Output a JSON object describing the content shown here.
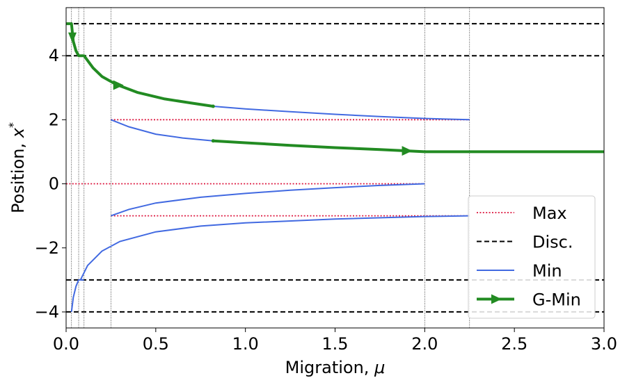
{
  "chart_data": {
    "type": "line",
    "xlabel": "Migration, μ",
    "ylabel": "Position, x*",
    "xlim": [
      0.0,
      3.0
    ],
    "ylim": [
      -4.5,
      5.5
    ],
    "x_ticks": [
      "0.0",
      "0.5",
      "1.0",
      "1.5",
      "2.0",
      "2.5",
      "3.0"
    ],
    "y_ticks": [
      "−4",
      "−2",
      "0",
      "2",
      "4"
    ],
    "grid": false,
    "legend": {
      "placement": "bottom-right",
      "entries": [
        "Max",
        "Disc.",
        "Min",
        "G-Min"
      ]
    },
    "colors": {
      "max": "#dc143c",
      "disc": "#000000",
      "min": "#4169e1",
      "gmin": "#228b22"
    },
    "bifurcation_points": [
      0.03,
      0.07,
      0.1,
      0.25,
      2.0,
      2.25
    ],
    "series": [
      {
        "name": "Disc.",
        "style": "dashed",
        "segments": [
          {
            "x": [
              0,
              3
            ],
            "y": [
              5,
              5
            ]
          },
          {
            "x": [
              0,
              3
            ],
            "y": [
              4,
              4
            ]
          },
          {
            "x": [
              0,
              3
            ],
            "y": [
              -3,
              -3
            ]
          },
          {
            "x": [
              0,
              3
            ],
            "y": [
              -4,
              -4
            ]
          }
        ]
      },
      {
        "name": "Max",
        "style": "dotted",
        "segments": [
          {
            "x": [
              0.25,
              2.25
            ],
            "y": [
              2,
              2
            ]
          },
          {
            "x": [
              0.0,
              2.0
            ],
            "y": [
              0,
              0
            ]
          },
          {
            "x": [
              0.25,
              2.25
            ],
            "y": [
              -1,
              -1
            ]
          }
        ]
      },
      {
        "name": "Min",
        "style": "solid",
        "segments": [
          {
            "x": [
              0.82,
              1.0,
              1.25,
              1.5,
              1.75,
              2.0,
              2.25
            ],
            "y": [
              2.42,
              2.34,
              2.25,
              2.17,
              2.1,
              2.04,
              2.0
            ]
          },
          {
            "x": [
              0.25,
              0.35,
              0.5,
              0.65,
              0.82
            ],
            "y": [
              2.0,
              1.78,
              1.55,
              1.43,
              1.34
            ]
          },
          {
            "x": [
              0.25,
              0.35,
              0.5,
              0.75,
              1.0,
              1.25,
              1.5,
              1.75,
              2.0
            ],
            "y": [
              -1.0,
              -0.8,
              -0.6,
              -0.42,
              -0.3,
              -0.2,
              -0.12,
              -0.05,
              0.0
            ]
          },
          {
            "x": [
              0.08,
              0.12,
              0.2,
              0.3,
              0.5,
              0.75,
              1.0,
              1.5,
              2.0,
              2.25
            ],
            "y": [
              -3.0,
              -2.55,
              -2.1,
              -1.8,
              -1.5,
              -1.32,
              -1.22,
              -1.1,
              -1.02,
              -1.0
            ]
          },
          {
            "x": [
              0.03,
              0.04,
              0.055,
              0.07,
              0.1
            ],
            "y": [
              -4.0,
              -3.55,
              -3.2,
              -3.0,
              -3.0
            ]
          }
        ]
      },
      {
        "name": "G-Min",
        "style": "arrow",
        "segments": [
          {
            "x": [
              0.0,
              0.03,
              0.04,
              0.055,
              0.07,
              0.1,
              0.15,
              0.2,
              0.28,
              0.4,
              0.55,
              0.7,
              0.82
            ],
            "y": [
              5.0,
              5.0,
              4.45,
              4.15,
              4.0,
              4.0,
              3.62,
              3.35,
              3.1,
              2.85,
              2.65,
              2.52,
              2.42
            ]
          },
          {
            "x": [
              0.82,
              1.0,
              1.25,
              1.5,
              1.75,
              1.9,
              2.0,
              2.25,
              3.0
            ],
            "y": [
              1.34,
              1.28,
              1.2,
              1.13,
              1.07,
              1.03,
              1.0,
              1.0,
              1.0
            ]
          }
        ],
        "arrows": [
          {
            "x": 0.035,
            "y": 4.55,
            "dir": "down"
          },
          {
            "x": 0.29,
            "y": 3.08,
            "dir": "right"
          },
          {
            "x": 1.9,
            "y": 1.03,
            "dir": "right"
          }
        ]
      }
    ]
  }
}
